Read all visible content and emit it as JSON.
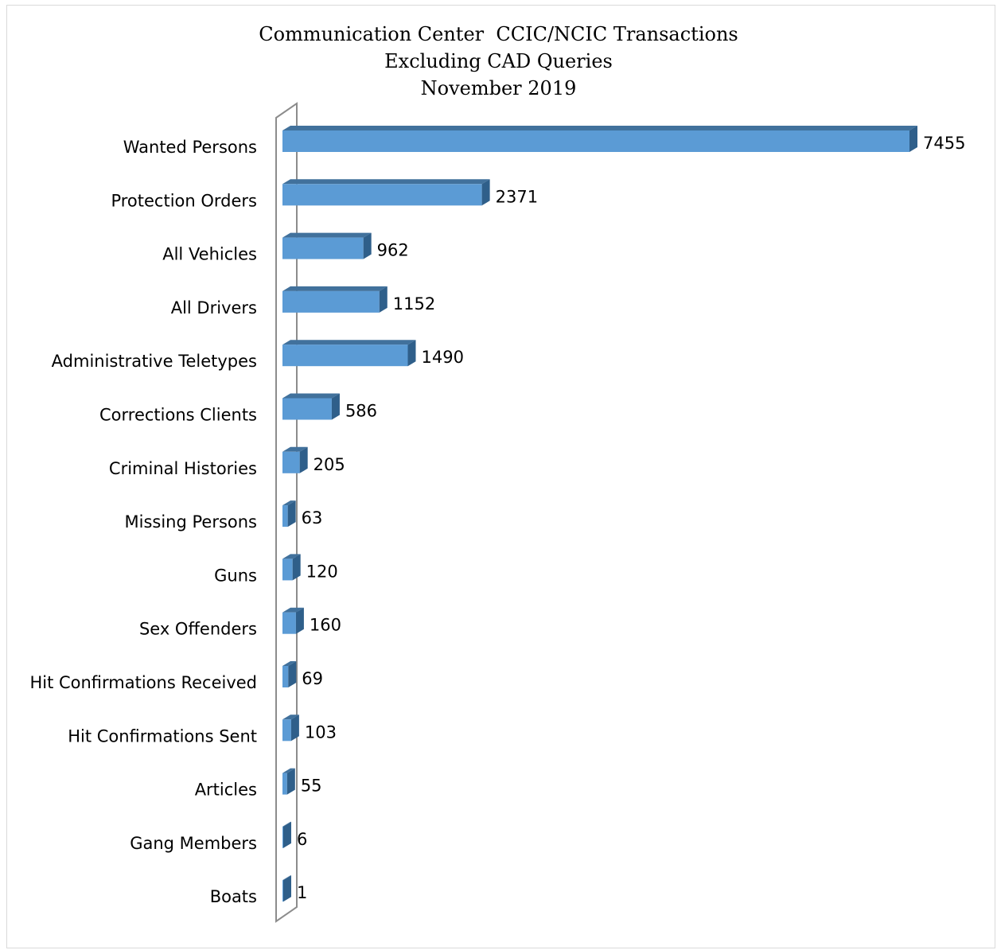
{
  "chart_data": {
    "type": "bar",
    "orientation": "horizontal",
    "style": "3d",
    "title": [
      "Communication Center  CCIC/NCIC Transactions",
      "Excluding CAD Queries",
      "November 2019"
    ],
    "categories": [
      "Wanted Persons",
      "Protection Orders",
      "All Vehicles",
      "All Drivers",
      "Administrative Teletypes",
      "Corrections Clients",
      "Criminal Histories",
      "Missing Persons",
      "Guns",
      "Sex Offenders",
      "Hit Confirmations Received",
      "Hit Confirmations Sent",
      "Articles",
      "Gang Members",
      "Boats"
    ],
    "values": [
      7455,
      2371,
      962,
      1152,
      1490,
      586,
      205,
      63,
      120,
      160,
      69,
      103,
      55,
      6,
      1
    ],
    "xlim": [
      0,
      7455
    ],
    "grid": false,
    "legend": "none",
    "colors": {
      "bar_front": "#5b9bd5",
      "bar_top": "#41719c",
      "bar_side": "#2f5f8a",
      "wall": "#8c8c8c"
    }
  }
}
